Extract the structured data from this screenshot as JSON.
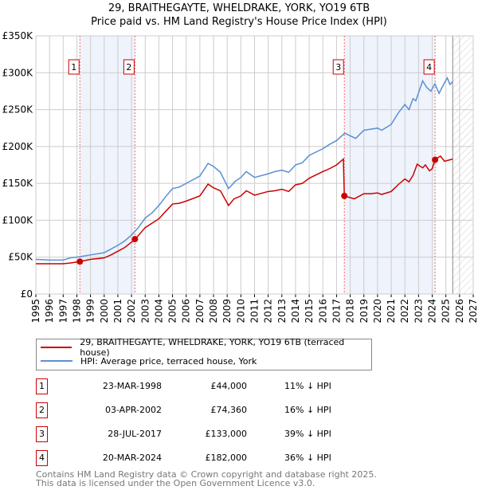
{
  "chart_data": {
    "type": "line",
    "title": "29, BRAITHEGAYTE, WHELDRAKE, YORK, YO19 6TB",
    "subtitle": "Price paid vs. HM Land Registry's House Price Index (HPI)",
    "xlim": [
      1995,
      2027
    ],
    "ylim": [
      0,
      350000
    ],
    "x_ticks": [
      "1995",
      "1996",
      "1997",
      "1998",
      "1999",
      "2000",
      "2001",
      "2002",
      "2003",
      "2004",
      "2005",
      "2006",
      "2007",
      "2008",
      "2009",
      "2010",
      "2011",
      "2012",
      "2013",
      "2014",
      "2015",
      "2016",
      "2017",
      "2018",
      "2019",
      "2020",
      "2021",
      "2022",
      "2023",
      "2024",
      "2025",
      "2026",
      "2027"
    ],
    "y_ticks": [
      {
        "v": 0,
        "label": "£0"
      },
      {
        "v": 50000,
        "label": "£50K"
      },
      {
        "v": 100000,
        "label": "£100K"
      },
      {
        "v": 150000,
        "label": "£150K"
      },
      {
        "v": 200000,
        "label": "£200K"
      },
      {
        "v": 250000,
        "label": "£250K"
      },
      {
        "v": 300000,
        "label": "£300K"
      },
      {
        "v": 350000,
        "label": "£350K"
      }
    ],
    "grid": true,
    "forecast_hatch_from": 2025.5,
    "series": [
      {
        "name": "29, BRAITHEGAYTE, WHELDRAKE, YORK, YO19 6TB (terraced house)",
        "color": "#cc0000",
        "points": [
          [
            1995,
            41
          ],
          [
            1996,
            41
          ],
          [
            1997,
            41
          ],
          [
            1997.5,
            42
          ],
          [
            1998.22,
            44
          ],
          [
            1999,
            47
          ],
          [
            2000,
            49
          ],
          [
            2000.5,
            53
          ],
          [
            2001,
            58
          ],
          [
            2001.5,
            63
          ],
          [
            2002.25,
            74
          ],
          [
            2003,
            90
          ],
          [
            2003.5,
            96
          ],
          [
            2004,
            102
          ],
          [
            2004.5,
            112
          ],
          [
            2005,
            122
          ],
          [
            2005.5,
            123
          ],
          [
            2006,
            126
          ],
          [
            2007,
            133
          ],
          [
            2007.6,
            149
          ],
          [
            2008,
            144
          ],
          [
            2008.5,
            140
          ],
          [
            2009.1,
            120
          ],
          [
            2009.5,
            129
          ],
          [
            2010,
            133
          ],
          [
            2010.4,
            140
          ],
          [
            2011,
            134
          ],
          [
            2012,
            139
          ],
          [
            2012.5,
            140
          ],
          [
            2013,
            142
          ],
          [
            2013.5,
            139
          ],
          [
            2014,
            148
          ],
          [
            2014.5,
            150
          ],
          [
            2015,
            157
          ],
          [
            2016,
            166
          ],
          [
            2016.5,
            170
          ],
          [
            2017,
            175
          ],
          [
            2017.5,
            183
          ],
          [
            2017.57,
            133
          ],
          [
            2018.3,
            129
          ],
          [
            2019,
            136
          ],
          [
            2019.5,
            136
          ],
          [
            2020,
            137
          ],
          [
            2020.3,
            135
          ],
          [
            2021,
            139
          ],
          [
            2021.5,
            148
          ],
          [
            2022,
            156
          ],
          [
            2022.3,
            152
          ],
          [
            2022.6,
            161
          ],
          [
            2022.9,
            176
          ],
          [
            2023.3,
            171
          ],
          [
            2023.5,
            175
          ],
          [
            2023.8,
            167
          ],
          [
            2024.0,
            170
          ],
          [
            2024.21,
            182
          ],
          [
            2024.6,
            187
          ],
          [
            2024.9,
            180
          ],
          [
            2025.5,
            183
          ]
        ]
      },
      {
        "name": "HPI: Average price, terraced house, York",
        "color": "#5b8fd4",
        "points": [
          [
            1995,
            47
          ],
          [
            1996,
            46
          ],
          [
            1997,
            46
          ],
          [
            1997.5,
            49
          ],
          [
            1998,
            50
          ],
          [
            1999,
            53
          ],
          [
            2000,
            56
          ],
          [
            2000.5,
            61
          ],
          [
            2001,
            66
          ],
          [
            2001.5,
            72
          ],
          [
            2002,
            80
          ],
          [
            2002.5,
            90
          ],
          [
            2003,
            103
          ],
          [
            2003.5,
            110
          ],
          [
            2004,
            120
          ],
          [
            2004.5,
            132
          ],
          [
            2005,
            143
          ],
          [
            2005.5,
            145
          ],
          [
            2006,
            150
          ],
          [
            2007,
            160
          ],
          [
            2007.6,
            177
          ],
          [
            2008,
            173
          ],
          [
            2008.5,
            165
          ],
          [
            2009.1,
            143
          ],
          [
            2009.6,
            153
          ],
          [
            2010,
            158
          ],
          [
            2010.4,
            166
          ],
          [
            2011,
            158
          ],
          [
            2012,
            163
          ],
          [
            2012.5,
            166
          ],
          [
            2013,
            168
          ],
          [
            2013.5,
            165
          ],
          [
            2014,
            175
          ],
          [
            2014.5,
            178
          ],
          [
            2015,
            188
          ],
          [
            2016,
            197
          ],
          [
            2016.5,
            203
          ],
          [
            2017,
            208
          ],
          [
            2017.6,
            218
          ],
          [
            2018.4,
            211
          ],
          [
            2019,
            222
          ],
          [
            2019.7,
            224
          ],
          [
            2020,
            225
          ],
          [
            2020.3,
            222
          ],
          [
            2021,
            230
          ],
          [
            2021.5,
            245
          ],
          [
            2022,
            257
          ],
          [
            2022.3,
            250
          ],
          [
            2022.6,
            265
          ],
          [
            2022.8,
            262
          ],
          [
            2023.3,
            289
          ],
          [
            2023.6,
            280
          ],
          [
            2023.9,
            275
          ],
          [
            2024.2,
            285
          ],
          [
            2024.5,
            272
          ],
          [
            2024.8,
            283
          ],
          [
            2025.1,
            293
          ],
          [
            2025.3,
            284
          ],
          [
            2025.5,
            288
          ]
        ]
      }
    ],
    "sales": [
      {
        "n": "1",
        "x": 2002.25,
        "xs": 1998.22,
        "date": "23-MAR-1998",
        "price": "£44,000",
        "value": 44000,
        "pct": "11% ↓ HPI"
      },
      {
        "n": "2",
        "xs": 2002.25,
        "date": "03-APR-2002",
        "price": "£74,360",
        "value": 74360,
        "pct": "16% ↓ HPI"
      },
      {
        "n": "3",
        "xs": 2017.57,
        "date": "28-JUL-2017",
        "price": "£133,000",
        "value": 133000,
        "pct": "39% ↓ HPI"
      },
      {
        "n": "4",
        "xs": 2024.21,
        "date": "20-MAR-2024",
        "price": "£182,000",
        "value": 182000,
        "pct": "36% ↓ HPI"
      }
    ]
  },
  "footer": {
    "line1": "Contains HM Land Registry data © Crown copyright and database right 2025.",
    "line2": "This data is licensed under the Open Government Licence v3.0."
  }
}
